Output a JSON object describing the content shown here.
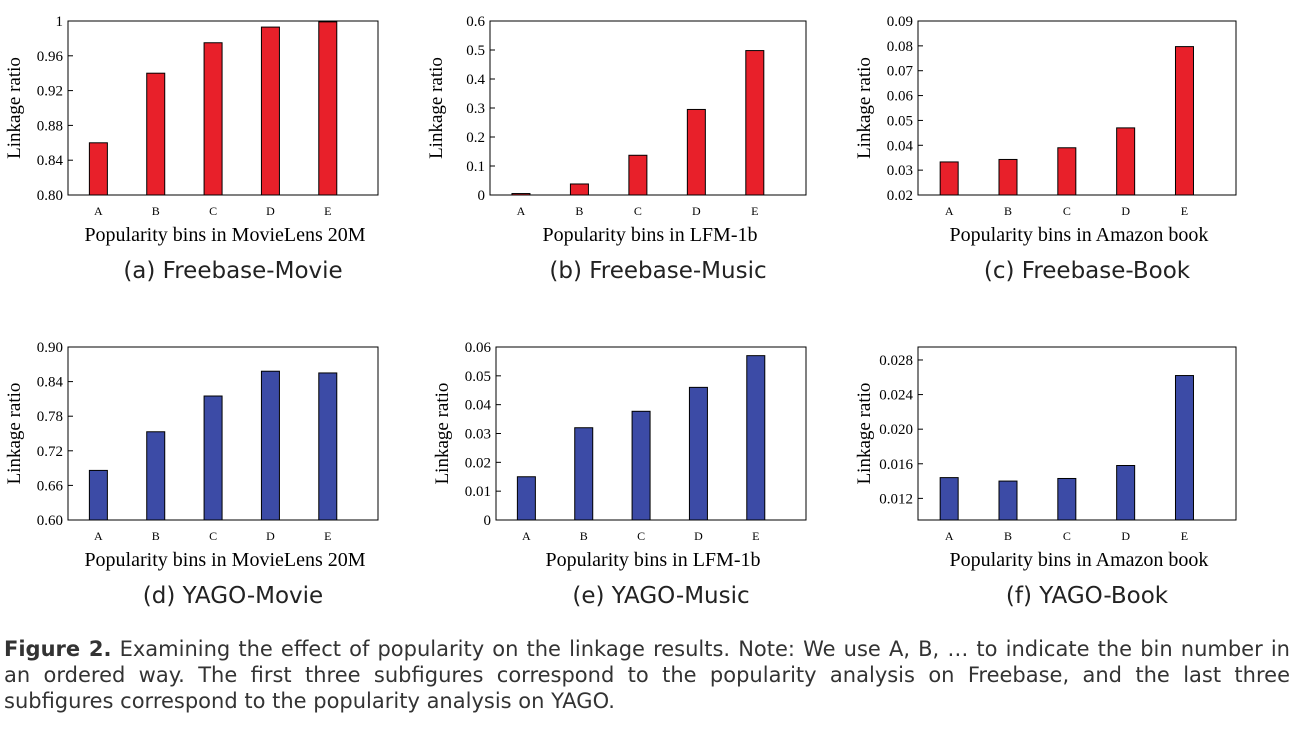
{
  "chart_data": [
    {
      "type": "bar",
      "caption": "(a)  Freebase-Movie",
      "xlabel": "Popularity bins in MovieLens 20M",
      "ylabel": "Linkage ratio",
      "categories": [
        "A",
        "B",
        "C",
        "D",
        "E"
      ],
      "values": [
        0.86,
        0.94,
        0.975,
        0.993,
        0.999
      ],
      "ylim": [
        0.8,
        1.0
      ],
      "yticks": [
        "0.80",
        "0.84",
        "0.88",
        "0.92",
        "0.96",
        "1"
      ],
      "color": "#e8202a"
    },
    {
      "type": "bar",
      "caption": "(b)  Freebase-Music",
      "xlabel": "Popularity bins in LFM-1b",
      "ylabel": "Linkage ratio",
      "categories": [
        "A",
        "B",
        "C",
        "D",
        "E"
      ],
      "values": [
        0.005,
        0.038,
        0.137,
        0.295,
        0.498
      ],
      "ylim": [
        0,
        0.6
      ],
      "yticks": [
        "0",
        "0.1",
        "0.2",
        "0.3",
        "0.4",
        "0.5",
        "0.6"
      ],
      "color": "#e8202a"
    },
    {
      "type": "bar",
      "caption": "(c)  Freebase-Book",
      "xlabel": "Popularity bins in Amazon book",
      "ylabel": "Linkage ratio",
      "categories": [
        "A",
        "B",
        "C",
        "D",
        "E"
      ],
      "values": [
        0.0333,
        0.0343,
        0.039,
        0.047,
        0.0797
      ],
      "ylim": [
        0.02,
        0.09
      ],
      "yticks": [
        "0.02",
        "0.03",
        "0.04",
        "0.05",
        "0.06",
        "0.07",
        "0.08",
        "0.09"
      ],
      "color": "#e8202a"
    },
    {
      "type": "bar",
      "caption": "(d)  YAGO-Movie",
      "xlabel": "Popularity bins in MovieLens 20M",
      "ylabel": "Linkage ratio",
      "categories": [
        "A",
        "B",
        "C",
        "D",
        "E"
      ],
      "values": [
        0.686,
        0.753,
        0.815,
        0.858,
        0.855
      ],
      "ylim": [
        0.6,
        0.9
      ],
      "yticks": [
        "0.60",
        "0.66",
        "0.72",
        "0.78",
        "0.84",
        "0.90"
      ],
      "color": "#3c4ba6"
    },
    {
      "type": "bar",
      "caption": "(e)  YAGO-Music",
      "xlabel": "Popularity bins in LFM-1b",
      "ylabel": "Linkage ratio",
      "categories": [
        "A",
        "B",
        "C",
        "D",
        "E"
      ],
      "values": [
        0.015,
        0.032,
        0.0377,
        0.046,
        0.057
      ],
      "ylim": [
        0,
        0.06
      ],
      "yticks": [
        "0",
        "0.01",
        "0.02",
        "0.03",
        "0.04",
        "0.05",
        "0.06"
      ],
      "color": "#3c4ba6"
    },
    {
      "type": "bar",
      "caption": "(f)  YAGO-Book",
      "xlabel": "Popularity bins in Amazon book",
      "ylabel": "Linkage ratio",
      "categories": [
        "A",
        "B",
        "C",
        "D",
        "E"
      ],
      "values": [
        0.0144,
        0.014,
        0.0143,
        0.0158,
        0.0262
      ],
      "ylim": [
        0.0095,
        0.0295
      ],
      "yticks": [
        "0.012",
        "0.016",
        "0.020",
        "0.024",
        "0.028"
      ],
      "ytick_values": [
        0.012,
        0.016,
        0.02,
        0.024,
        0.028
      ],
      "color": "#3c4ba6"
    }
  ],
  "figure_caption": {
    "label": "Figure 2.",
    "text": " Examining the effect of popularity on the linkage results. Note: We use A, B, … to indicate the bin number in an ordered way. The first three subfigures correspond to the popularity analysis on Freebase, and the last three subfigures correspond to the popularity analysis on YAGO."
  }
}
